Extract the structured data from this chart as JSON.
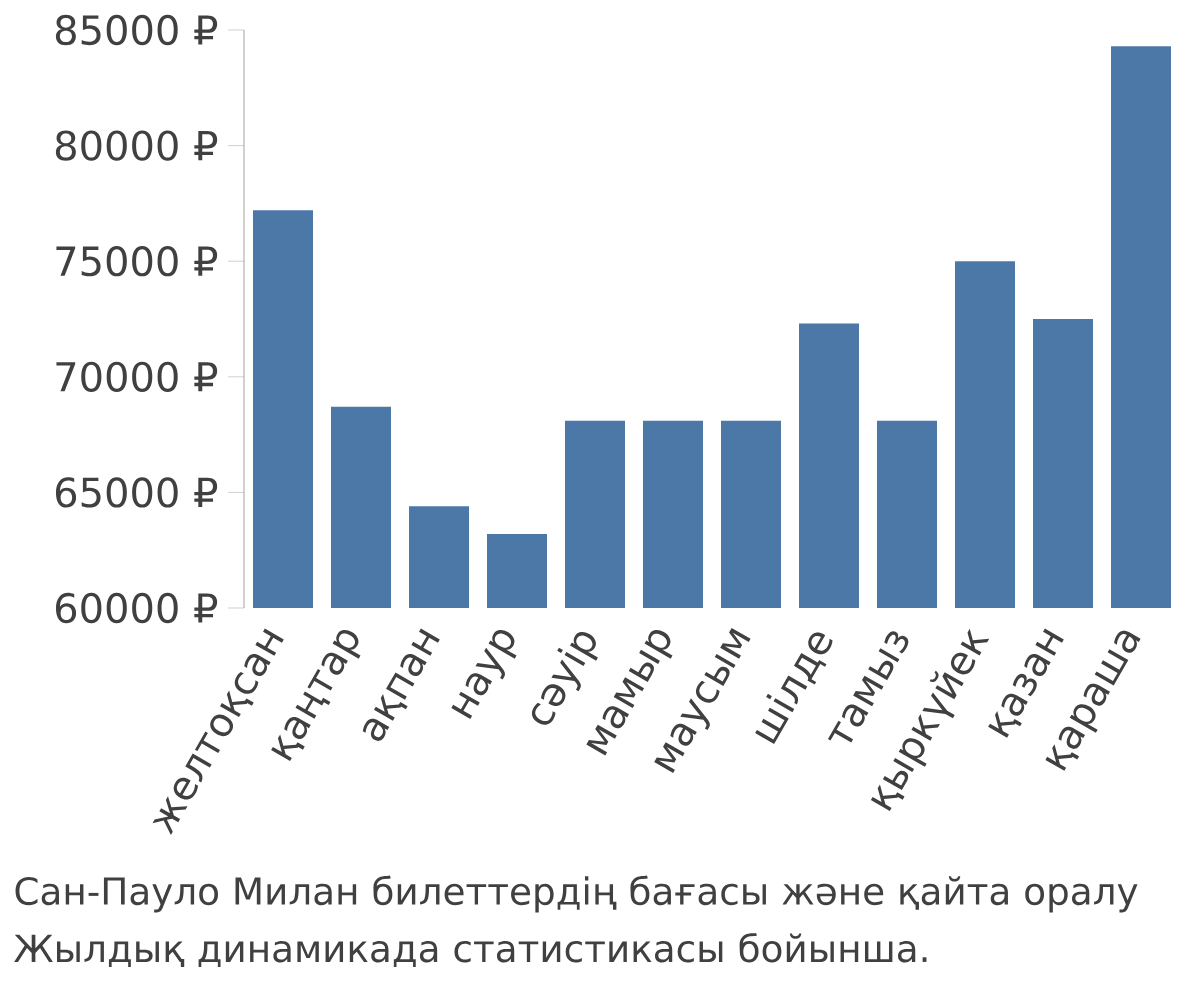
{
  "chart_data": {
    "type": "bar",
    "categories": [
      "желтоқсан",
      "қаңтар",
      "ақпан",
      "наур",
      "сәуір",
      "мамыр",
      "маусым",
      "шілде",
      "тамыз",
      "қыркүйек",
      "қазан",
      "қараша"
    ],
    "values": [
      77200,
      68700,
      64400,
      63200,
      68100,
      68100,
      68100,
      72300,
      68100,
      75000,
      72500,
      84300
    ],
    "color": "#4c78a8",
    "ylim": [
      60000,
      85000
    ],
    "yticks": [
      {
        "value": 60000,
        "label": "60000 ₽"
      },
      {
        "value": 65000,
        "label": "65000 ₽"
      },
      {
        "value": 70000,
        "label": "70000 ₽"
      },
      {
        "value": 75000,
        "label": "75000 ₽"
      },
      {
        "value": 80000,
        "label": "80000 ₽"
      },
      {
        "value": 85000,
        "label": "85000 ₽"
      }
    ],
    "annotations": [
      "Сан-Пауло Милан билеттердің бағасы және қайта оралу",
      "Жылдық динамикада статистикасы бойынша."
    ],
    "grid": false
  }
}
